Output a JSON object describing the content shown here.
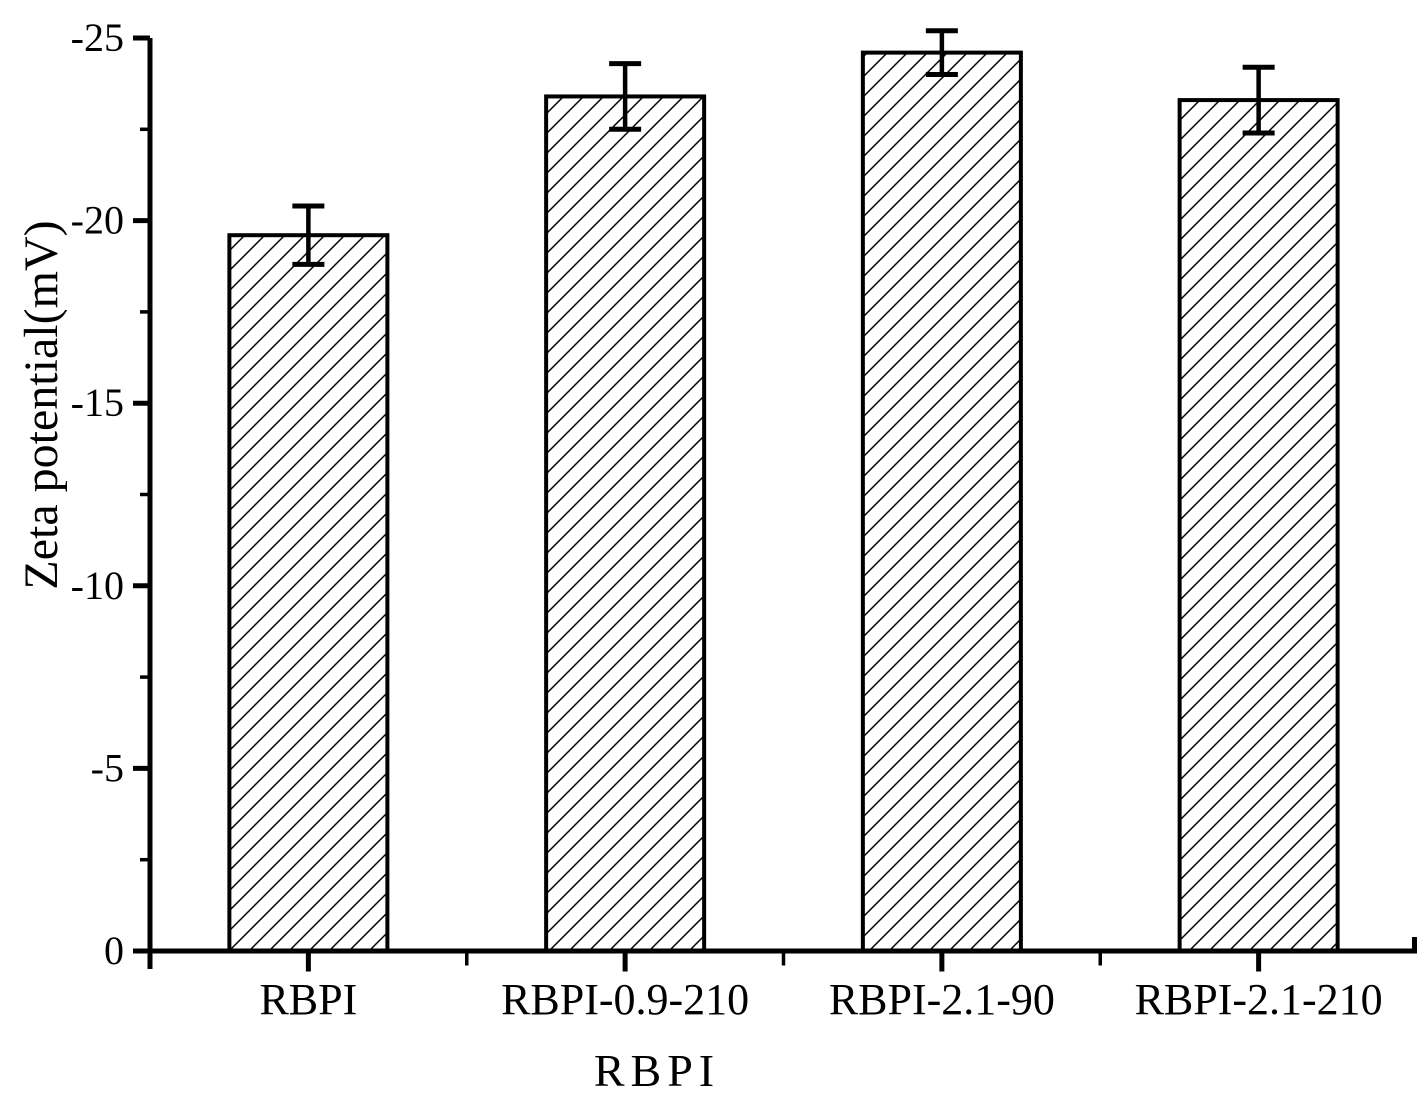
{
  "page": {
    "background": "#ffffff",
    "foreground": "#000000"
  },
  "chart_data": {
    "type": "bar",
    "title": "",
    "xlabel": "RBPI",
    "ylabel": "Zeta potential(mV)",
    "categories": [
      "RBPI",
      "RBPI-0.9-210",
      "RBPI-2.1-90",
      "RBPI-2.1-210"
    ],
    "series": [
      {
        "name": "Zeta potential",
        "values": [
          -19.6,
          -23.4,
          -24.6,
          -23.3
        ],
        "errors": [
          0.8,
          0.9,
          0.6,
          0.9
        ]
      }
    ],
    "y_axis": {
      "label": "Zeta potential(mV)",
      "unit": "mV",
      "range_displayed": [
        0,
        -25
      ],
      "inverted": true,
      "major_ticks": [
        0,
        -5,
        -10,
        -15,
        -20,
        -25
      ],
      "tick_labels": [
        "0",
        "-5",
        "-10",
        "-15",
        "-20",
        "-25"
      ],
      "minor_tick_step": 2.5
    },
    "x_axis": {
      "label": "RBPI",
      "tick_labels": [
        "RBPI",
        "RBPI-0.9-210",
        "RBPI-2.1-90",
        "RBPI-2.1-210"
      ]
    },
    "style": {
      "bar_fill": "diagonal-hatch",
      "hatch_direction": "forward-slash",
      "bar_stroke_color": "#000000",
      "axis_color": "#000000",
      "background": "#ffffff",
      "grid": "off",
      "legend": "none"
    }
  }
}
